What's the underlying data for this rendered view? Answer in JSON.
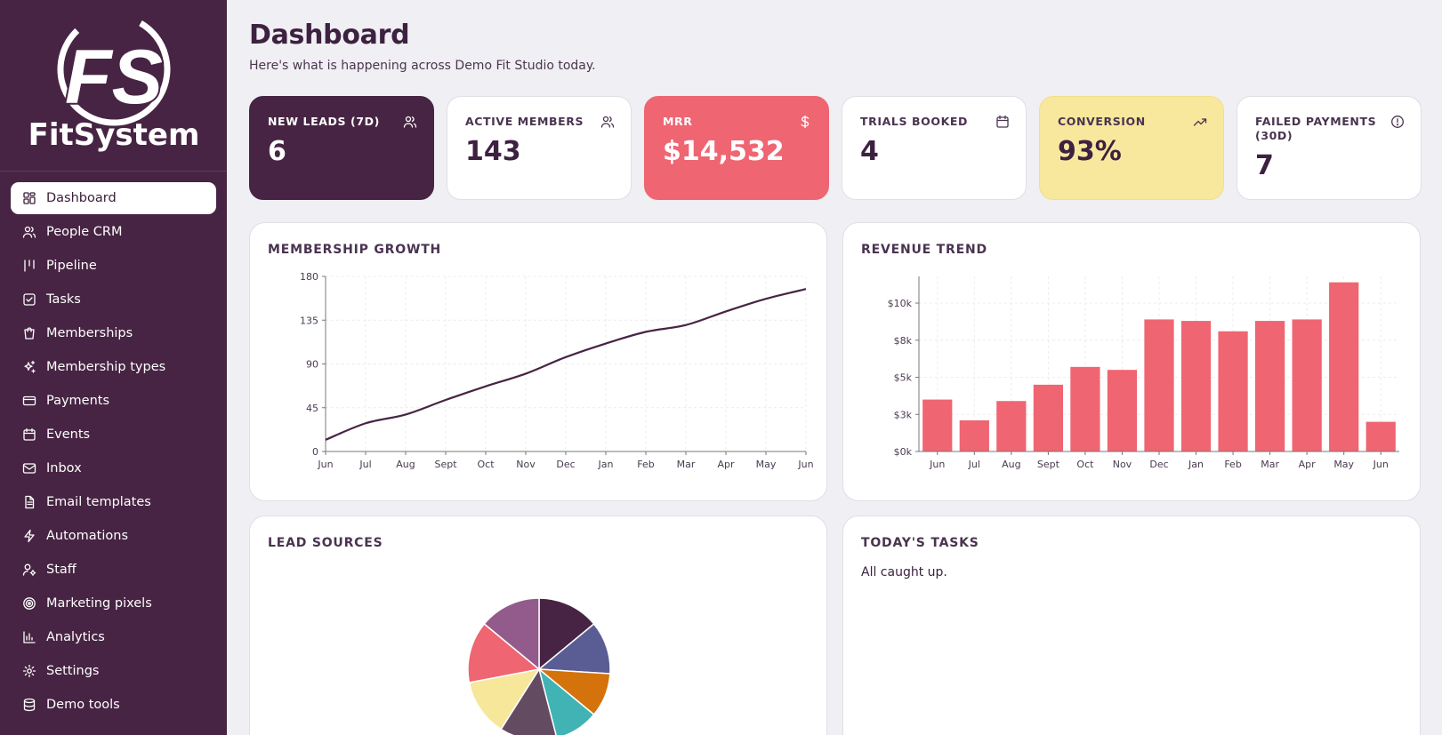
{
  "brand": {
    "name": "FitSystem",
    "monogram": "FS"
  },
  "nav": [
    {
      "label": "Dashboard",
      "icon": "grid-icon",
      "active": true
    },
    {
      "label": "People CRM",
      "icon": "users-icon"
    },
    {
      "label": "Pipeline",
      "icon": "pipeline-icon"
    },
    {
      "label": "Tasks",
      "icon": "checkbox-icon"
    },
    {
      "label": "Memberships",
      "icon": "bag-icon"
    },
    {
      "label": "Membership types",
      "icon": "sparkles-icon"
    },
    {
      "label": "Payments",
      "icon": "credit-card-icon"
    },
    {
      "label": "Events",
      "icon": "calendar-icon"
    },
    {
      "label": "Inbox",
      "icon": "mail-icon"
    },
    {
      "label": "Email templates",
      "icon": "file-text-icon"
    },
    {
      "label": "Automations",
      "icon": "lightning-icon"
    },
    {
      "label": "Staff",
      "icon": "user-cog-icon"
    },
    {
      "label": "Marketing pixels",
      "icon": "target-icon"
    },
    {
      "label": "Analytics",
      "icon": "bar-chart-icon"
    },
    {
      "label": "Settings",
      "icon": "gear-icon"
    },
    {
      "label": "Demo tools",
      "icon": "database-icon"
    }
  ],
  "header": {
    "title": "Dashboard",
    "subtitle": "Here's what is happening across Demo Fit Studio today."
  },
  "kpis": [
    {
      "label": "New leads (7d)",
      "value": "6",
      "icon": "users-icon",
      "style": "dark"
    },
    {
      "label": "Active members",
      "value": "143",
      "icon": "users-icon",
      "style": "light"
    },
    {
      "label": "MRR",
      "value": "$14,532",
      "icon": "dollar-icon",
      "style": "red"
    },
    {
      "label": "Trials booked",
      "value": "4",
      "icon": "calendar-icon",
      "style": "light"
    },
    {
      "label": "Conversion",
      "value": "93%",
      "icon": "trending-up-icon",
      "style": "yellow"
    },
    {
      "label": "Failed payments (30d)",
      "value": "7",
      "icon": "alert-circle-icon",
      "style": "light"
    }
  ],
  "cards": {
    "membership_growth": "Membership growth",
    "revenue_trend": "Revenue trend",
    "lead_sources": "Lead sources",
    "todays_tasks": "Today's tasks",
    "tasks_empty": "All caught up."
  },
  "colors": {
    "primary": "#472443",
    "accent": "#ef6572",
    "yellow": "#f8e89d",
    "background": "#f0eff3"
  },
  "chart_data": [
    {
      "type": "line",
      "x": [
        "Jun",
        "Jul",
        "Aug",
        "Sept",
        "Oct",
        "Nov",
        "Dec",
        "Jan",
        "Feb",
        "Mar",
        "Apr",
        "May",
        "Jun"
      ],
      "series": [
        {
          "values": [
            12,
            29,
            38,
            53,
            67,
            80,
            97,
            111,
            123,
            130,
            144,
            157,
            167
          ]
        }
      ],
      "y_ticks": [
        "0",
        "45",
        "90",
        "135",
        "180"
      ],
      "ylim": [
        0,
        180
      ],
      "grid": true,
      "color": "#472443"
    },
    {
      "type": "bar",
      "categories": [
        "Jun",
        "Jul",
        "Aug",
        "Sept",
        "Oct",
        "Nov",
        "Dec",
        "Jan",
        "Feb",
        "Mar",
        "Apr",
        "May",
        "Jun"
      ],
      "values": [
        3.5,
        2.1,
        3.4,
        4.5,
        5.7,
        5.5,
        8.9,
        8.8,
        8.1,
        8.8,
        8.9,
        11.4,
        2.0
      ],
      "y_ticks": [
        "$0k",
        "$3k",
        "$5k",
        "$8k",
        "$10k"
      ],
      "ylim": [
        0,
        11.8
      ],
      "grid": true,
      "color": "#ef6572"
    },
    {
      "type": "pie",
      "values": [
        14,
        12,
        10,
        10,
        13,
        13,
        14,
        14
      ],
      "colors": [
        "#472443",
        "#5a5d94",
        "#d4720b",
        "#41b3b5",
        "#634b62",
        "#f7e79a",
        "#ef6572",
        "#925b8c"
      ]
    }
  ]
}
